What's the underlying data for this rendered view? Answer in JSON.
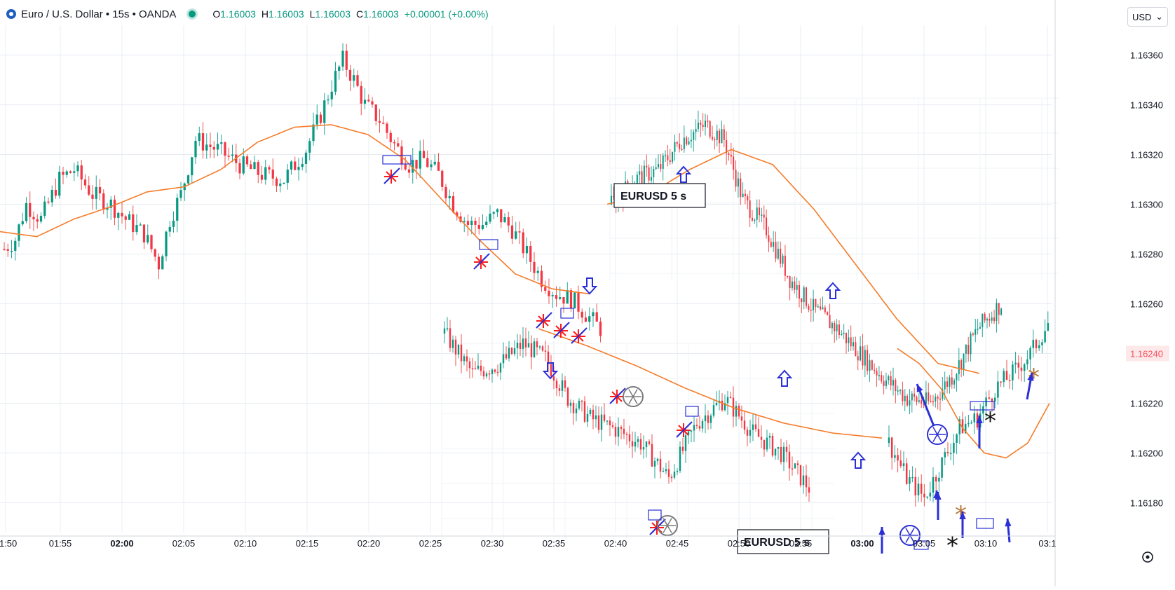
{
  "header": {
    "title": "Euro / U.S. Dollar • 15s • OANDA",
    "ohlc": [
      {
        "label": "O",
        "value": "1.16003"
      },
      {
        "label": "H",
        "value": "1.16003"
      },
      {
        "label": "L",
        "value": "1.16003"
      },
      {
        "label": "C",
        "value": "1.16003"
      }
    ],
    "change": "+0.00001 (+0.00%)",
    "currency": "USD",
    "currency_caret": "⌄"
  },
  "colors": {
    "up": "#089981",
    "down": "#f23645",
    "up_wick": "#26a69a",
    "down_wick": "#ef5350",
    "ma": "#f57c2a",
    "grid": "#e8ecf2",
    "annotation_blue": "#2a2fd6",
    "annotation_red": "#ff1a1a",
    "last_price": "#f7525f"
  },
  "chart_data": {
    "type": "candlestick",
    "title": "",
    "x_ticks": [
      "01:50",
      "01:55",
      "02:00",
      "02:05",
      "02:10",
      "02:15",
      "02:20",
      "02:25",
      "02:30",
      "02:35",
      "02:40",
      "02:45",
      "02:50",
      "02:55",
      "03:00",
      "03:05",
      "03:10",
      "03:1"
    ],
    "x_ticks_bold": [
      "02:00",
      "03:00"
    ],
    "y_ticks": [
      "1.16360",
      "1.16340",
      "1.16320",
      "1.16300",
      "1.16280",
      "1.16260",
      "1.16240",
      "1.16220",
      "1.16200",
      "1.16180"
    ],
    "y_range": [
      1.16168,
      1.16372
    ],
    "last_price": "1.16240",
    "inset_labels": [
      {
        "text": "EURUSD   5 s"
      },
      {
        "text": "EURUSD   5 s"
      }
    ],
    "main_close_keypoints": [
      [
        0,
        1.16282
      ],
      [
        3,
        1.16286
      ],
      [
        6,
        1.163
      ],
      [
        10,
        1.16294
      ],
      [
        15,
        1.1631
      ],
      [
        19,
        1.16314
      ],
      [
        24,
        1.16304
      ],
      [
        29,
        1.163
      ],
      [
        33,
        1.16294
      ],
      [
        38,
        1.16288
      ],
      [
        42,
        1.16276
      ],
      [
        45,
        1.16294
      ],
      [
        48,
        1.16304
      ],
      [
        52,
        1.16326
      ],
      [
        58,
        1.16322
      ],
      [
        64,
        1.16316
      ],
      [
        70,
        1.16312
      ],
      [
        76,
        1.1631
      ],
      [
        82,
        1.16322
      ],
      [
        86,
        1.16336
      ],
      [
        89,
        1.16348
      ],
      [
        92,
        1.16358
      ],
      [
        95,
        1.1635
      ],
      [
        98,
        1.1634
      ],
      [
        102,
        1.16334
      ],
      [
        106,
        1.16324
      ],
      [
        110,
        1.16316
      ],
      [
        114,
        1.16318
      ],
      [
        118,
        1.16312
      ],
      [
        122,
        1.163
      ],
      [
        126,
        1.16292
      ],
      [
        130,
        1.16292
      ],
      [
        134,
        1.16296
      ],
      [
        138,
        1.1629
      ],
      [
        142,
        1.1628
      ],
      [
        146,
        1.1627
      ],
      [
        150,
        1.16264
      ],
      [
        154,
        1.16262
      ],
      [
        158,
        1.16256
      ],
      [
        162,
        1.1625
      ]
    ],
    "main_ma_keypoints": [
      [
        0,
        1.16289
      ],
      [
        10,
        1.16287
      ],
      [
        20,
        1.16294
      ],
      [
        30,
        1.16299
      ],
      [
        40,
        1.16305
      ],
      [
        50,
        1.16307
      ],
      [
        60,
        1.16314
      ],
      [
        70,
        1.16325
      ],
      [
        80,
        1.16331
      ],
      [
        90,
        1.16332
      ],
      [
        100,
        1.16328
      ],
      [
        110,
        1.16318
      ],
      [
        120,
        1.16302
      ],
      [
        130,
        1.16286
      ],
      [
        140,
        1.16272
      ],
      [
        150,
        1.16266
      ],
      [
        160,
        1.16264
      ]
    ],
    "inset_ma_keypoints_a": [
      [
        0,
        1.1625
      ],
      [
        10,
        1.16243
      ],
      [
        20,
        1.16235
      ],
      [
        30,
        1.16226
      ],
      [
        40,
        1.16218
      ],
      [
        50,
        1.16212
      ],
      [
        60,
        1.16208
      ],
      [
        70,
        1.16206
      ]
    ],
    "inset_ma_keypoints_b": [
      [
        0,
        1.163
      ],
      [
        10,
        1.16304
      ],
      [
        20,
        1.16314
      ],
      [
        30,
        1.16322
      ],
      [
        40,
        1.16316
      ],
      [
        50,
        1.16298
      ],
      [
        60,
        1.16276
      ],
      [
        70,
        1.16254
      ],
      [
        80,
        1.16236
      ],
      [
        90,
        1.16232
      ]
    ],
    "right_ma_keypoints": [
      [
        0,
        1.16242
      ],
      [
        10,
        1.16236
      ],
      [
        20,
        1.16226
      ],
      [
        30,
        1.1621
      ],
      [
        40,
        1.162
      ],
      [
        50,
        1.16198
      ],
      [
        60,
        1.16204
      ],
      [
        70,
        1.1622
      ]
    ],
    "right_close_keypoints": [
      [
        0,
        1.16204
      ],
      [
        6,
        1.1619
      ],
      [
        12,
        1.16182
      ],
      [
        18,
        1.16196
      ],
      [
        24,
        1.1621
      ],
      [
        30,
        1.16214
      ],
      [
        36,
        1.16226
      ],
      [
        42,
        1.16232
      ],
      [
        48,
        1.1624
      ],
      [
        54,
        1.16252
      ]
    ]
  }
}
